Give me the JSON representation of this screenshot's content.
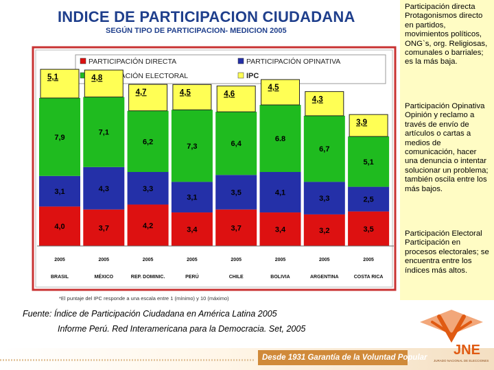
{
  "header": {
    "title": "INDICE DE PARTICIPACION CIUDADANA",
    "subtitle": "SEGÚN TIPO DE PARTICIPACION- MEDICION 2005"
  },
  "side_notes": [
    "Participación directa Protagonismos directo en partidos, movimientos políticos, ONG`s, org. Religiosas, comunales o barriales; es la más baja.",
    "Participación Opinativa Opinión y reclamo a través de envío de artículos o cartas a medios de comunicación, hacer una denuncia o intentar solucionar un problema; también oscila entre los más bajos.",
    "Participación Electoral Participación en procesos electorales; se encuentra entre los índices más altos."
  ],
  "source": {
    "line1": "Fuente: Índice de Participación Ciudadana en América Latina 2005",
    "line2": "Informe Perú. Red Interamericana para la Democracia. Set, 2005"
  },
  "footer": {
    "motto": "Desde 1931 Garantía de la Voluntad Popular",
    "logo_name": "JNE",
    "logo_sub": "JURADO NACIONAL DE ELECCIONES"
  },
  "colors": {
    "directa": "#dd1111",
    "opinativa": "#2430a8",
    "electoral": "#1fbb1f",
    "ipc": "#ffff55",
    "frame": "#c83232",
    "accent": "#e05a12"
  },
  "chart_data": {
    "type": "bar",
    "stacked": true,
    "categories": [
      "BRASIL",
      "MÉXICO",
      "REP. DOMINIC.",
      "PERÚ",
      "CHILE",
      "BOLIVIA",
      "ARGENTINA",
      "COSTA RICA"
    ],
    "years": [
      "2005",
      "2005",
      "2005",
      "2005",
      "2005",
      "2005",
      "2005",
      "2005"
    ],
    "series": [
      {
        "name": "PARTICIPACIÓN DIRECTA",
        "key": "directa",
        "values": [
          4.0,
          3.7,
          4.2,
          3.4,
          3.7,
          3.4,
          3.2,
          3.5
        ],
        "labels": [
          "4,0",
          "3,7",
          "4,2",
          "3,4",
          "3,7",
          "3,4",
          "3,2",
          "3,5"
        ]
      },
      {
        "name": "PARTICIPACIÓN OPINATIVA",
        "key": "opinativa",
        "values": [
          3.1,
          4.3,
          3.3,
          3.1,
          3.5,
          4.1,
          3.3,
          2.5
        ],
        "labels": [
          "3,1",
          "4,3",
          "3,3",
          "3,1",
          "3,5",
          "4,1",
          "3,3",
          "2,5"
        ]
      },
      {
        "name": "PARTICIPACIÓN ELECTORAL",
        "key": "electoral",
        "values": [
          7.9,
          7.1,
          6.2,
          7.3,
          6.4,
          6.8,
          6.7,
          5.1
        ],
        "labels": [
          "7,9",
          "7,1",
          "6,2",
          "7,3",
          "6,4",
          "6.8",
          "6,7",
          "5,1"
        ]
      },
      {
        "name": "IPC",
        "key": "ipc",
        "values": [
          5.1,
          4.8,
          4.7,
          4.5,
          4.6,
          4.5,
          4.3,
          3.9
        ],
        "labels": [
          "5,1",
          "4,8",
          "4,7",
          "4,5",
          "4,6",
          "4,5",
          "4,3",
          "3,9"
        ]
      }
    ],
    "footnote": "*El puntaje del IPC responde a una escala entre 1 (mínimo) y 10 (máximo)",
    "legend_position": "top",
    "xlabel": "",
    "ylabel": ""
  }
}
